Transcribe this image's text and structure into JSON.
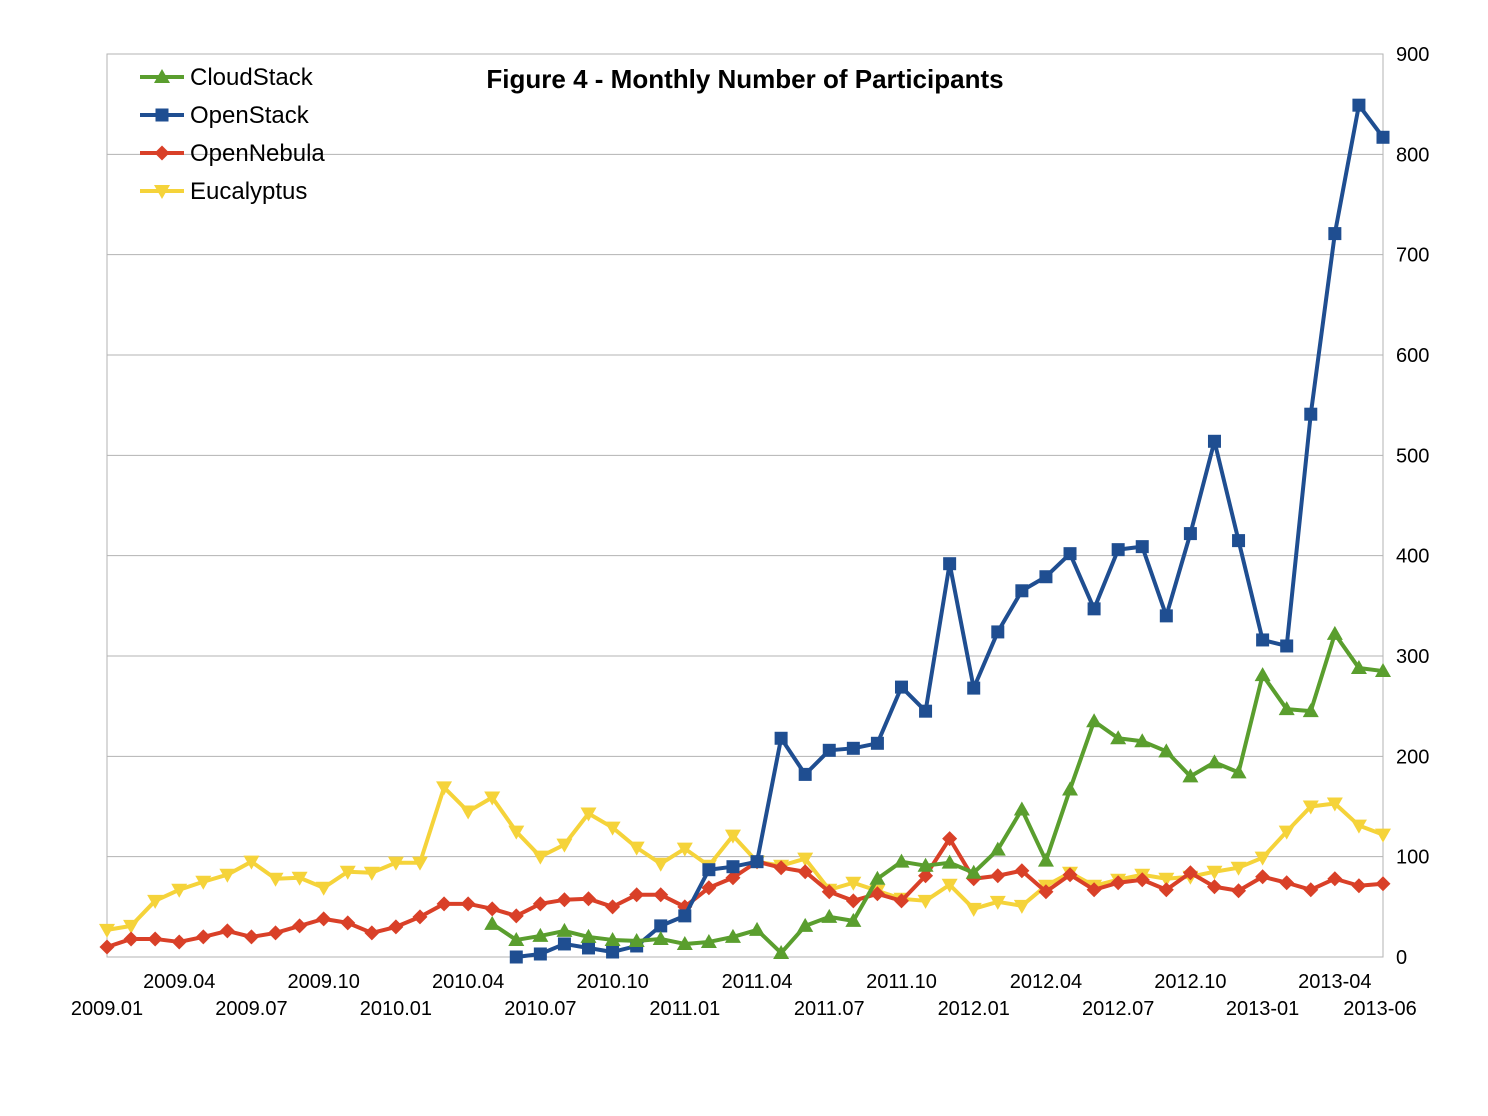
{
  "chart_data": {
    "type": "line",
    "title": "Figure 4 - Monthly Number of Participants",
    "xlabel": "",
    "ylabel": "",
    "ylim": [
      0,
      900
    ],
    "yticks": [
      0,
      100,
      200,
      300,
      400,
      500,
      600,
      700,
      800,
      900
    ],
    "y_axis_side": "right",
    "grid": "horizontal",
    "legend_position": "top-left",
    "x": [
      "2009.01",
      "2009.02",
      "2009.03",
      "2009.04",
      "2009.05",
      "2009.06",
      "2009.07",
      "2009.08",
      "2009.09",
      "2009.10",
      "2009.11",
      "2009.12",
      "2010.01",
      "2010.02",
      "2010.03",
      "2010.04",
      "2010.05",
      "2010.06",
      "2010.07",
      "2010.08",
      "2010.09",
      "2010.10",
      "2010.11",
      "2010.12",
      "2011.01",
      "2011.02",
      "2011.03",
      "2011.04",
      "2011.05",
      "2011.06",
      "2011.07",
      "2011.08",
      "2011.09",
      "2011.10",
      "2011.11",
      "2011.12",
      "2012.01",
      "2012.02",
      "2012.03",
      "2012.04",
      "2012.05",
      "2012.06",
      "2012.07",
      "2012.08",
      "2012.09",
      "2012.10",
      "2012.11",
      "2012.12",
      "2013.01",
      "2013.02",
      "2013.03",
      "2013.04",
      "2013.05",
      "2013.06"
    ],
    "x_tick_labels_top": [
      "2009.04",
      "2009.10",
      "2010.04",
      "2010.10",
      "2011.04",
      "2011.10",
      "2012.04",
      "2012.10",
      "2013.04"
    ],
    "x_tick_labels_bottom": [
      "2009.01",
      "2009.07",
      "2010.01",
      "2010.07",
      "2011.01",
      "2011.07",
      "2012.01",
      "2012.07",
      "2013.01",
      "2013-06"
    ],
    "x_tick_labels_top_display": [
      "2009.04",
      "2009.10",
      "2010.04",
      "2010.10",
      "2011.04",
      "2011.10",
      "2012.04",
      "2012.10",
      "2013-04"
    ],
    "x_tick_labels_bottom_display": [
      "2009.01",
      "2009.07",
      "2010.01",
      "2010.07",
      "2011.01",
      "2011.07",
      "2012.01",
      "2012.07",
      "2013-01",
      "2013-06"
    ],
    "series": [
      {
        "name": "CloudStack",
        "color": "#5a9e2e",
        "marker": "triangle-up",
        "values": [
          null,
          null,
          null,
          null,
          null,
          null,
          null,
          null,
          null,
          null,
          null,
          null,
          null,
          null,
          null,
          null,
          33,
          17,
          21,
          26,
          20,
          17,
          16,
          18,
          13,
          15,
          20,
          27,
          4,
          31,
          40,
          36,
          78,
          95,
          91,
          94,
          84,
          107,
          147,
          96,
          167,
          235,
          218,
          215,
          205,
          180,
          194,
          184,
          281,
          247,
          245,
          322,
          288,
          285
        ]
      },
      {
        "name": "OpenStack",
        "color": "#1f4e91",
        "marker": "square",
        "values": [
          null,
          null,
          null,
          null,
          null,
          null,
          null,
          null,
          null,
          null,
          null,
          null,
          null,
          null,
          null,
          null,
          null,
          0,
          3,
          13,
          9,
          5,
          11,
          31,
          41,
          87,
          90,
          95,
          218,
          182,
          206,
          208,
          213,
          269,
          245,
          392,
          268,
          324,
          365,
          379,
          402,
          347,
          406,
          409,
          340,
          422,
          514,
          415,
          316,
          310,
          541,
          721,
          849,
          817
        ]
      },
      {
        "name": "OpenNebula",
        "color": "#d94028",
        "marker": "diamond",
        "values": [
          10,
          18,
          18,
          15,
          20,
          26,
          20,
          24,
          31,
          38,
          34,
          24,
          30,
          40,
          53,
          53,
          48,
          41,
          53,
          57,
          58,
          50,
          62,
          62,
          50,
          69,
          79,
          95,
          89,
          85,
          65,
          56,
          63,
          56,
          81,
          118,
          78,
          81,
          86,
          65,
          82,
          67,
          74,
          77,
          67,
          84,
          70,
          66,
          80,
          74,
          67,
          78,
          71,
          73
        ]
      },
      {
        "name": "Eucalyptus",
        "color": "#f5d33a",
        "marker": "triangle-down",
        "values": [
          27,
          31,
          56,
          67,
          75,
          82,
          95,
          78,
          79,
          69,
          85,
          84,
          94,
          94,
          169,
          145,
          159,
          125,
          100,
          112,
          143,
          129,
          109,
          93,
          108,
          91,
          121,
          95,
          91,
          98,
          67,
          74,
          66,
          58,
          56,
          72,
          48,
          55,
          51,
          71,
          84,
          71,
          77,
          82,
          78,
          80,
          85,
          89,
          99,
          125,
          150,
          153,
          131,
          122
        ]
      }
    ]
  }
}
